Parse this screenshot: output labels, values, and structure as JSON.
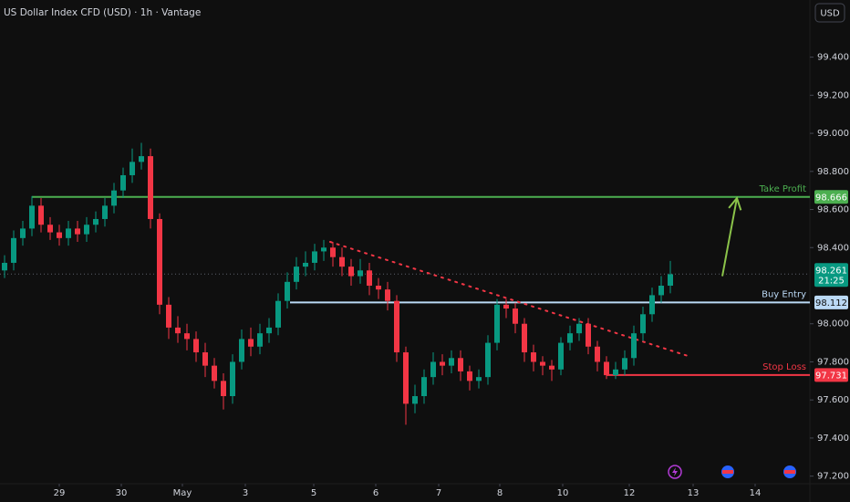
{
  "chart_data": {
    "type": "candlestick",
    "title": "US Dollar Index CFD (USD) · 1h · Vantage",
    "currency_button": "USD",
    "up_color": "#089981",
    "down_color": "#f23645",
    "xlim": [
      -0.5,
      88.3
    ],
    "xticks": [
      {
        "value": 6,
        "label": "29"
      },
      {
        "value": 12.8,
        "label": "30"
      },
      {
        "value": 19.5,
        "label": "May"
      },
      {
        "value": 26.4,
        "label": "3"
      },
      {
        "value": 33.9,
        "label": "5"
      },
      {
        "value": 40.7,
        "label": "6"
      },
      {
        "value": 47.6,
        "label": "7"
      },
      {
        "value": 54.3,
        "label": "8"
      },
      {
        "value": 61.2,
        "label": "10"
      },
      {
        "value": 68.5,
        "label": "12"
      },
      {
        "value": 75.5,
        "label": "13"
      },
      {
        "value": 82.3,
        "label": "14"
      }
    ],
    "ylim": [
      97.16,
      99.7
    ],
    "yticks": [
      {
        "value": 99.4,
        "label": "99.400"
      },
      {
        "value": 99.2,
        "label": "99.200"
      },
      {
        "value": 99.0,
        "label": "99.000"
      },
      {
        "value": 98.8,
        "label": "98.800"
      },
      {
        "value": 98.6,
        "label": "98.600"
      },
      {
        "value": 98.4,
        "label": "98.400"
      },
      {
        "value": 98.0,
        "label": "98.000"
      },
      {
        "value": 97.8,
        "label": "97.800"
      },
      {
        "value": 97.6,
        "label": "97.600"
      },
      {
        "value": 97.4,
        "label": "97.400"
      },
      {
        "value": 97.2,
        "label": "97.200"
      }
    ],
    "open": [
      98.28,
      98.32,
      98.45,
      98.5,
      98.62,
      98.52,
      98.48,
      98.45,
      98.5,
      98.47,
      98.52,
      98.55,
      98.62,
      98.7,
      98.78,
      98.85,
      98.88,
      98.55,
      98.1,
      97.98,
      97.95,
      97.92,
      97.85,
      97.78,
      97.7,
      97.62,
      97.8,
      97.92,
      97.88,
      97.95,
      97.98,
      98.12,
      98.22,
      98.3,
      98.32,
      98.38,
      98.4,
      98.35,
      98.3,
      98.25,
      98.28,
      98.2,
      98.18,
      98.12,
      97.85,
      97.58,
      97.62,
      97.72,
      97.8,
      97.78,
      97.82,
      97.75,
      97.7,
      97.72,
      97.9,
      98.1,
      98.08,
      98.0,
      97.85,
      97.8,
      97.78,
      97.76,
      97.9,
      97.95,
      98.0,
      97.88,
      97.8,
      97.73,
      97.76,
      97.82,
      97.95,
      98.05,
      98.15,
      98.2
    ],
    "high": [
      98.36,
      98.49,
      98.54,
      98.67,
      98.66,
      98.56,
      98.52,
      98.54,
      98.54,
      98.56,
      98.59,
      98.66,
      98.74,
      98.82,
      98.92,
      98.95,
      98.92,
      98.58,
      98.14,
      98.04,
      98.0,
      97.96,
      97.9,
      97.82,
      97.74,
      97.84,
      97.97,
      97.98,
      98.0,
      98.03,
      98.16,
      98.27,
      98.35,
      98.38,
      98.42,
      98.44,
      98.43,
      98.4,
      98.34,
      98.34,
      98.32,
      98.24,
      98.22,
      98.15,
      97.88,
      97.68,
      97.76,
      97.85,
      97.84,
      97.86,
      97.86,
      97.78,
      97.76,
      97.94,
      98.13,
      98.13,
      98.11,
      98.03,
      97.89,
      97.83,
      97.81,
      97.93,
      97.99,
      98.03,
      98.03,
      97.91,
      97.83,
      97.8,
      97.86,
      97.99,
      98.09,
      98.19,
      98.25,
      98.33
    ],
    "low": [
      98.24,
      98.28,
      98.41,
      98.46,
      98.48,
      98.44,
      98.41,
      98.41,
      98.43,
      98.43,
      98.48,
      98.51,
      98.58,
      98.66,
      98.74,
      98.81,
      98.5,
      98.05,
      97.92,
      97.9,
      97.86,
      97.8,
      97.72,
      97.66,
      97.55,
      97.58,
      97.76,
      97.83,
      97.84,
      97.9,
      97.94,
      98.08,
      98.18,
      98.25,
      98.28,
      98.33,
      98.3,
      98.25,
      98.2,
      98.21,
      98.15,
      98.13,
      98.07,
      97.8,
      97.47,
      97.53,
      97.58,
      97.68,
      97.73,
      97.74,
      97.7,
      97.65,
      97.66,
      97.68,
      97.86,
      98.03,
      97.95,
      97.8,
      97.75,
      97.73,
      97.7,
      97.73,
      97.86,
      97.91,
      97.84,
      97.75,
      97.71,
      97.71,
      97.73,
      97.78,
      97.91,
      98.01,
      98.11,
      98.16
    ],
    "close": [
      98.32,
      98.45,
      98.5,
      98.62,
      98.52,
      98.48,
      98.45,
      98.5,
      98.47,
      98.52,
      98.55,
      98.62,
      98.7,
      98.78,
      98.85,
      98.88,
      98.55,
      98.1,
      97.98,
      97.95,
      97.92,
      97.85,
      97.78,
      97.7,
      97.62,
      97.8,
      97.92,
      97.88,
      97.95,
      97.98,
      98.12,
      98.22,
      98.3,
      98.32,
      98.38,
      98.4,
      98.35,
      98.3,
      98.25,
      98.28,
      98.2,
      98.18,
      98.12,
      97.85,
      97.58,
      97.62,
      97.72,
      97.8,
      97.78,
      97.82,
      97.75,
      97.7,
      97.72,
      97.9,
      98.1,
      98.08,
      98.0,
      97.85,
      97.8,
      97.78,
      97.76,
      97.9,
      97.95,
      98.0,
      97.88,
      97.8,
      97.73,
      97.76,
      97.82,
      97.95,
      98.05,
      98.15,
      98.2,
      98.26
    ],
    "levels": [
      {
        "name": "Take Profit",
        "value": 98.666,
        "color": "#4caf50",
        "start": 3
      },
      {
        "name": "Buy Entry",
        "value": 98.112,
        "color": "#bbd9f5",
        "start": 31.3
      },
      {
        "name": "Stop Loss",
        "value": 97.731,
        "color": "#f23645",
        "start": 66
      }
    ],
    "current_price": {
      "value": 98.261,
      "countdown": "21:25",
      "color": "#089981"
    },
    "trendline": {
      "from": [
        35.7,
        98.43
      ],
      "to": [
        75,
        97.83
      ],
      "color": "#f23645"
    },
    "arrow": {
      "from": [
        78.7,
        98.25
      ],
      "to": [
        80.3,
        98.66
      ],
      "color": "#8bc34a"
    }
  }
}
